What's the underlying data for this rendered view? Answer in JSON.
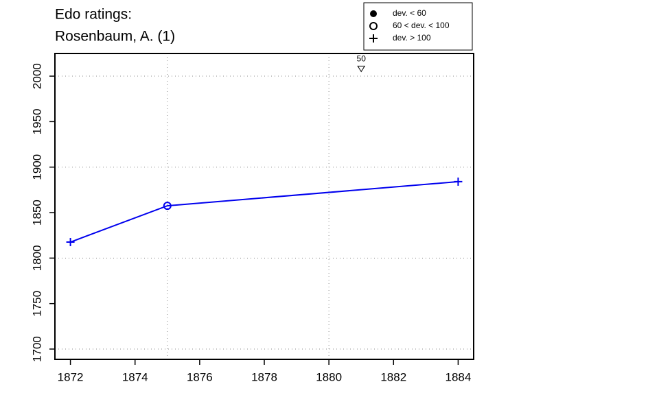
{
  "chart_data": {
    "type": "line",
    "title": [
      "Edo ratings:",
      "Rosenbaum, A. (1)"
    ],
    "x": [
      1872,
      1875,
      1884
    ],
    "series": [
      {
        "color": "#0000ee",
        "values": [
          1817.6,
          1857.5,
          1884
        ],
        "markers": [
          "plus",
          "circle",
          "plus"
        ]
      }
    ],
    "legend": [
      {
        "label": "dev. < 60",
        "marker": "dot"
      },
      {
        "label": "60 < dev. < 100",
        "marker": "circle"
      },
      {
        "label": "dev. > 100",
        "marker": "plus"
      }
    ],
    "annotations": [
      {
        "label": "50",
        "x": 1881,
        "y": 2008,
        "marker": "triangle-down"
      }
    ],
    "xlim": [
      1871.52,
      1884.48
    ],
    "ylim": [
      1688.7,
      2024.9
    ],
    "xticks": [
      1872,
      1874,
      1876,
      1878,
      1880,
      1882,
      1884
    ],
    "yticks": [
      1700,
      1750,
      1800,
      1850,
      1900,
      1950,
      2000
    ],
    "xgrid": [
      1875,
      1880
    ],
    "ygrid": [
      1700,
      1800,
      1900,
      2000
    ]
  }
}
